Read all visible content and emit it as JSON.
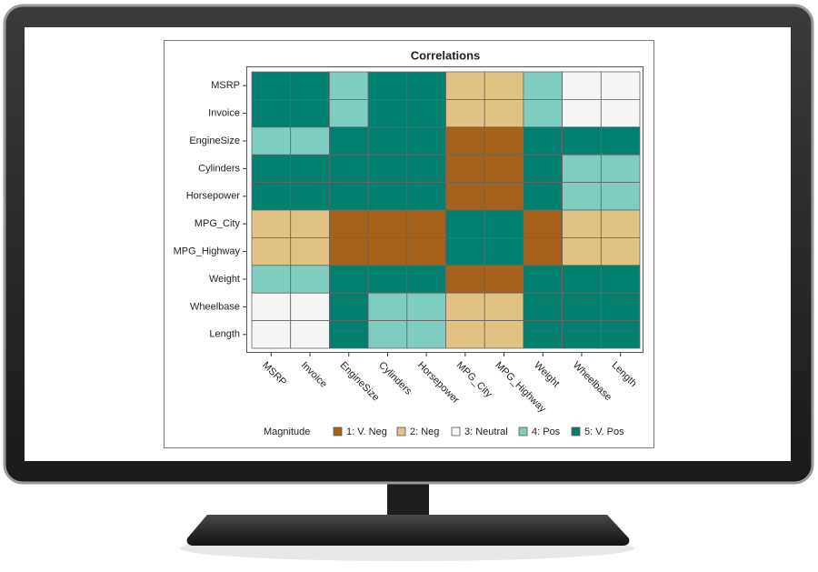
{
  "chart_data": {
    "type": "heatmap",
    "title": "Correlations",
    "x_categories": [
      "MSRP",
      "Invoice",
      "EngineSize",
      "Cylinders",
      "Horsepower",
      "MPG_City",
      "MPG_Highway",
      "Weight",
      "Wheelbase",
      "Length"
    ],
    "y_categories": [
      "MSRP",
      "Invoice",
      "EngineSize",
      "Cylinders",
      "Horsepower",
      "MPG_City",
      "MPG_Highway",
      "Weight",
      "Wheelbase",
      "Length"
    ],
    "values": [
      [
        5,
        5,
        4,
        5,
        5,
        2,
        2,
        4,
        3,
        3
      ],
      [
        5,
        5,
        4,
        5,
        5,
        2,
        2,
        4,
        3,
        3
      ],
      [
        4,
        4,
        5,
        5,
        5,
        1,
        1,
        5,
        5,
        5
      ],
      [
        5,
        5,
        5,
        5,
        5,
        1,
        1,
        5,
        4,
        4
      ],
      [
        5,
        5,
        5,
        5,
        5,
        1,
        1,
        5,
        4,
        4
      ],
      [
        2,
        2,
        1,
        1,
        1,
        5,
        5,
        1,
        2,
        2
      ],
      [
        2,
        2,
        1,
        1,
        1,
        5,
        5,
        1,
        2,
        2
      ],
      [
        4,
        4,
        5,
        5,
        5,
        1,
        1,
        5,
        5,
        5
      ],
      [
        3,
        3,
        5,
        4,
        4,
        2,
        2,
        5,
        5,
        5
      ],
      [
        3,
        3,
        5,
        4,
        4,
        2,
        2,
        5,
        5,
        5
      ]
    ],
    "legend": {
      "title": "Magnitude",
      "items": [
        {
          "value": 1,
          "label": "1: V. Neg",
          "color": "#a6611a"
        },
        {
          "value": 2,
          "label": "2: Neg",
          "color": "#e1c283"
        },
        {
          "value": 3,
          "label": "3: Neutral",
          "color": "#f5f5f5"
        },
        {
          "value": 4,
          "label": "4: Pos",
          "color": "#7fcdc0"
        },
        {
          "value": 5,
          "label": "5: V. Pos",
          "color": "#02806f"
        }
      ]
    }
  }
}
